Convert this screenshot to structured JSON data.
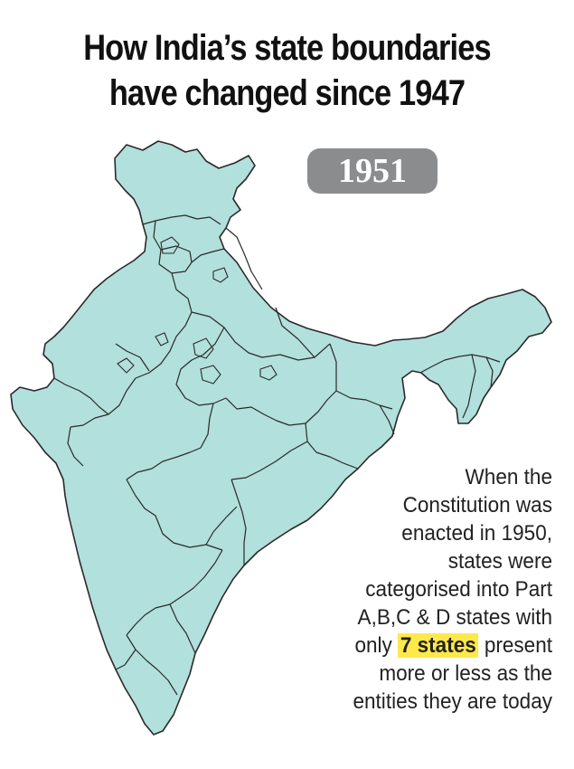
{
  "title": {
    "line1": "How India’s state boundaries",
    "line2": "have changed since 1947"
  },
  "year_badge": "1951",
  "caption": {
    "line1": "When the",
    "line2": "Constitution was",
    "line3": "enacted in 1950,",
    "line4": "states were",
    "line5": "categorised into Part",
    "line6": "A,B,C & D states with",
    "line7_before": "only",
    "line7_highlight": "7 states",
    "line7_after": "present",
    "line8": "more or less as the",
    "line9": "entities they are today"
  },
  "colors": {
    "land": "#b2e0dc",
    "border": "#2a2a2a",
    "badge": "#8a8c8e",
    "highlight": "#ffe94a"
  }
}
